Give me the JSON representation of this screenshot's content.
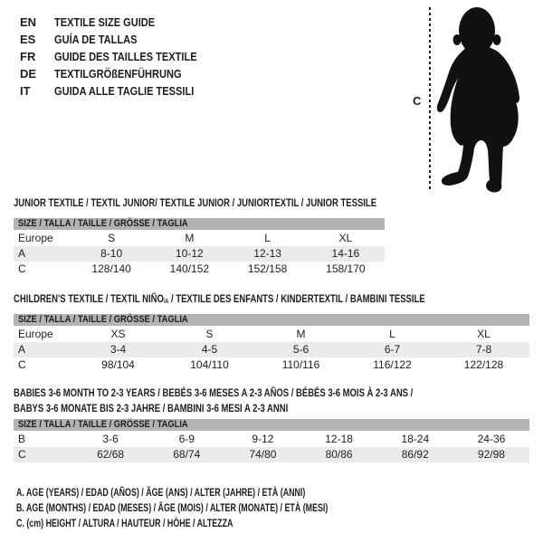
{
  "colors": {
    "ink": "#1d1d1b",
    "header_bar": "#b3b3b3",
    "row_shade": "#ebebeb",
    "background": "#ffffff"
  },
  "languages": {
    "items": [
      {
        "code": "EN",
        "label": "TEXTILE SIZE GUIDE"
      },
      {
        "code": "ES",
        "label": "GUÍA DE TALLAS"
      },
      {
        "code": "FR",
        "label": "GUIDE DES TAILLES TEXTILE"
      },
      {
        "code": "DE",
        "label": "TEXTILGRÖßENFÜHRUNG"
      },
      {
        "code": "IT",
        "label": "GUIDA ALLE TAGLIE TESSILI"
      }
    ]
  },
  "figure": {
    "silhouette": "standing-toddler",
    "measure_label": "C"
  },
  "tables": [
    {
      "title_lines": [
        [
          {
            "t": "JUNIOR TEXTILE / TEXTIL JUNIOR/ TEXTILE JUNIOR / JUNIORTEXTIL / JUNIOR TESSILE"
          }
        ]
      ],
      "size_header": "SIZE / TALLA / TAILLE / GRÖSSE / TAGLIA",
      "rows": [
        {
          "label": "Europe",
          "cells": [
            "S",
            "M",
            "L",
            "XL"
          ],
          "shaded": false
        },
        {
          "label": "A",
          "cells": [
            "8-10",
            "10-12",
            "12-13",
            "14-16"
          ],
          "shaded": true
        },
        {
          "label": "C",
          "cells": [
            "128/140",
            "140/152",
            "152/158",
            "158/170"
          ],
          "shaded": false
        }
      ]
    },
    {
      "title_lines": [
        [
          {
            "t": "CHILDREN'S TEXTILE / TEXTIL NIÑO"
          },
          {
            "t": "/A",
            "sub": true
          },
          {
            "t": " / TEXTILE DES ENFANTS / KINDERTEXTIL / BAMBINI TESSILE"
          }
        ]
      ],
      "size_header": "SIZE / TALLA / TAILLE / GRÖSSE / TAGLIA",
      "rows": [
        {
          "label": "Europe",
          "cells": [
            "XS",
            "S",
            "M",
            "L",
            "XL"
          ],
          "shaded": false
        },
        {
          "label": "A",
          "cells": [
            "3-4",
            "4-5",
            "5-6",
            "6-7",
            "7-8"
          ],
          "shaded": true
        },
        {
          "label": "C",
          "cells": [
            "98/104",
            "104/110",
            "110/116",
            "116/122",
            "122/128"
          ],
          "shaded": false
        }
      ]
    },
    {
      "title_lines": [
        [
          {
            "t": "BABIES 3-6 MONTH TO 2-3 YEARS / BEBÉS 3-6 MESES A 2-3 AÑOS / BÉBÉS 3-6 MOIS À 2-3 ANS /"
          }
        ],
        [
          {
            "t": "BABYS 3-6 MONATE BIS 2-3 JAHRE / BAMBINI 3-6 MESI A 2-3 ANNI"
          }
        ]
      ],
      "size_header": "SIZE / TALLA / TAILLE / GRÖSSE / TAGLIA",
      "rows": [
        {
          "label": "B",
          "cells": [
            "3-6",
            "6-9",
            "9-12",
            "12-18",
            "18-24",
            "24-36"
          ],
          "shaded": false
        },
        {
          "label": "C",
          "cells": [
            "62/68",
            "68/74",
            "74/80",
            "80/86",
            "86/92",
            "92/98"
          ],
          "shaded": true
        }
      ]
    }
  ],
  "footnotes": [
    "A. AGE (YEARS) / EDAD (AÑOS) / ÂGE (ANS) / ALTER (JAHRE) / ETÀ (ANNI)",
    "B. AGE (MONTHS) / EDAD (MESES) / ÂGE (MOIS) / ALTER (MONATE) / ETÀ (MESI)",
    "C. (cm) HEIGHT / ALTURA / HAUTEUR / HÖHE / ALTEZZA"
  ]
}
